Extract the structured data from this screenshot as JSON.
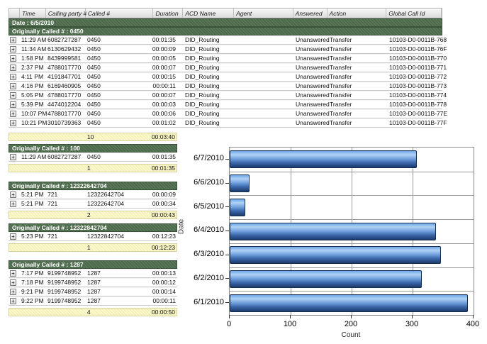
{
  "report": {
    "columns": [
      {
        "key": "expand",
        "label": ""
      },
      {
        "key": "time",
        "label": "Time"
      },
      {
        "key": "calling",
        "label": "Calling party #"
      },
      {
        "key": "called",
        "label": "Called #"
      },
      {
        "key": "duration",
        "label": "Duration"
      },
      {
        "key": "acd",
        "label": "ACD Name"
      },
      {
        "key": "agent",
        "label": "Agent"
      },
      {
        "key": "answered",
        "label": "Answered"
      },
      {
        "key": "action",
        "label": "Action"
      },
      {
        "key": "global",
        "label": "Global Call Id"
      }
    ],
    "date_header": "Date : 6/5/2010",
    "expand_glyph": "+",
    "groups": [
      {
        "title": "Originally Called # : 0450",
        "wide": true,
        "rows": [
          [
            "11:29 AM",
            "6082727287",
            "0450",
            "00:01:35",
            "DID_Routing",
            "",
            "Unanswered",
            "Transfer",
            "10103-D0-0011B-768"
          ],
          [
            "11:34 AM",
            "6130629432",
            "0450",
            "00:00:09",
            "DID_Routing",
            "",
            "Unanswered",
            "Transfer",
            "10103-D0-0011B-76F"
          ],
          [
            "1:58 PM",
            "8439999581",
            "0450",
            "00:00:05",
            "DID_Routing",
            "",
            "Unanswered",
            "Transfer",
            "10103-D0-0011B-770"
          ],
          [
            "2:37 PM",
            "4788017770",
            "0450",
            "00:00:07",
            "DID_Routing",
            "",
            "Unanswered",
            "Transfer",
            "10103-D0-0011B-771"
          ],
          [
            "4:11 PM",
            "4191847701",
            "0450",
            "00:00:15",
            "DID_Routing",
            "",
            "Unanswered",
            "Transfer",
            "10103-D0-0011B-772"
          ],
          [
            "4:16 PM",
            "6169460905",
            "0450",
            "00:00:11",
            "DID_Routing",
            "",
            "Unanswered",
            "Transfer",
            "10103-D0-0011B-773"
          ],
          [
            "5:05 PM",
            "4788017770",
            "0450",
            "00:00:07",
            "DID_Routing",
            "",
            "Unanswered",
            "Transfer",
            "10103-D0-0011B-774"
          ],
          [
            "5:39 PM",
            "4474012204",
            "0450",
            "00:00:03",
            "DID_Routing",
            "",
            "Unanswered",
            "Transfer",
            "10103-D0-0011B-778"
          ],
          [
            "10:07 PM",
            "4788017770",
            "0450",
            "00:00:06",
            "DID_Routing",
            "",
            "Unanswered",
            "Transfer",
            "10103-D0-0011B-77E"
          ],
          [
            "10:21 PM",
            "3010739363",
            "0450",
            "00:01:02",
            "DID_Routing",
            "",
            "Unanswered",
            "Transfer",
            "10103-D0-0011B-77F"
          ]
        ],
        "summary": {
          "count": "10",
          "total": "00:03:40"
        }
      },
      {
        "title": "Originally Called # : 100",
        "wide": false,
        "rows": [
          [
            "11:29 AM",
            "6082727287",
            "0450",
            "00:01:35"
          ]
        ],
        "summary": {
          "count": "1",
          "total": "00:01:35"
        }
      },
      {
        "title": "Originally Called # : 12322642704",
        "wide": false,
        "rows": [
          [
            "5:21 PM",
            "721",
            "12322642704",
            "00:00:09"
          ],
          [
            "5:21 PM",
            "721",
            "12322642704",
            "00:00:34"
          ]
        ],
        "summary": {
          "count": "2",
          "total": "00:00:43"
        }
      },
      {
        "title": "Originally Called # : 12322842704",
        "wide": false,
        "rows": [
          [
            "5:23 PM",
            "721",
            "12322842704",
            "00:12:23"
          ]
        ],
        "summary": {
          "count": "1",
          "total": "00:12:23"
        }
      },
      {
        "title": "Originally Called # : 1287",
        "wide": false,
        "rows": [
          [
            "7:17 PM",
            "9199748952",
            "1287",
            "00:00:13"
          ],
          [
            "7:18 PM",
            "9199748952",
            "1287",
            "00:00:12"
          ],
          [
            "9:21 PM",
            "9199748952",
            "1287",
            "00:00:14"
          ],
          [
            "9:22 PM",
            "9199748952",
            "1287",
            "00:00:11"
          ]
        ],
        "summary": {
          "count": "4",
          "total": "00:00:50"
        }
      }
    ]
  },
  "chart_data": {
    "type": "bar",
    "orientation": "horizontal",
    "categories": [
      "6/7/2010",
      "6/6/2010",
      "6/5/2010",
      "6/4/2010",
      "6/3/2010",
      "6/2/2010",
      "6/1/2010"
    ],
    "values": [
      307,
      32,
      26,
      338,
      347,
      315,
      391
    ],
    "title": "",
    "xlabel": "Count",
    "ylabel": "Date",
    "xlim": [
      0,
      400
    ],
    "xticks": [
      0,
      100,
      200,
      300,
      400
    ],
    "grid": true,
    "legend": "none"
  },
  "colors": {
    "group_header_green": "#4c6a4a",
    "summary_yellow": "#fbf9c8",
    "bar_blue_light": "#b0d2f6",
    "bar_blue_dark": "#1b3a69",
    "grid_gray": "#9a9a9a"
  }
}
